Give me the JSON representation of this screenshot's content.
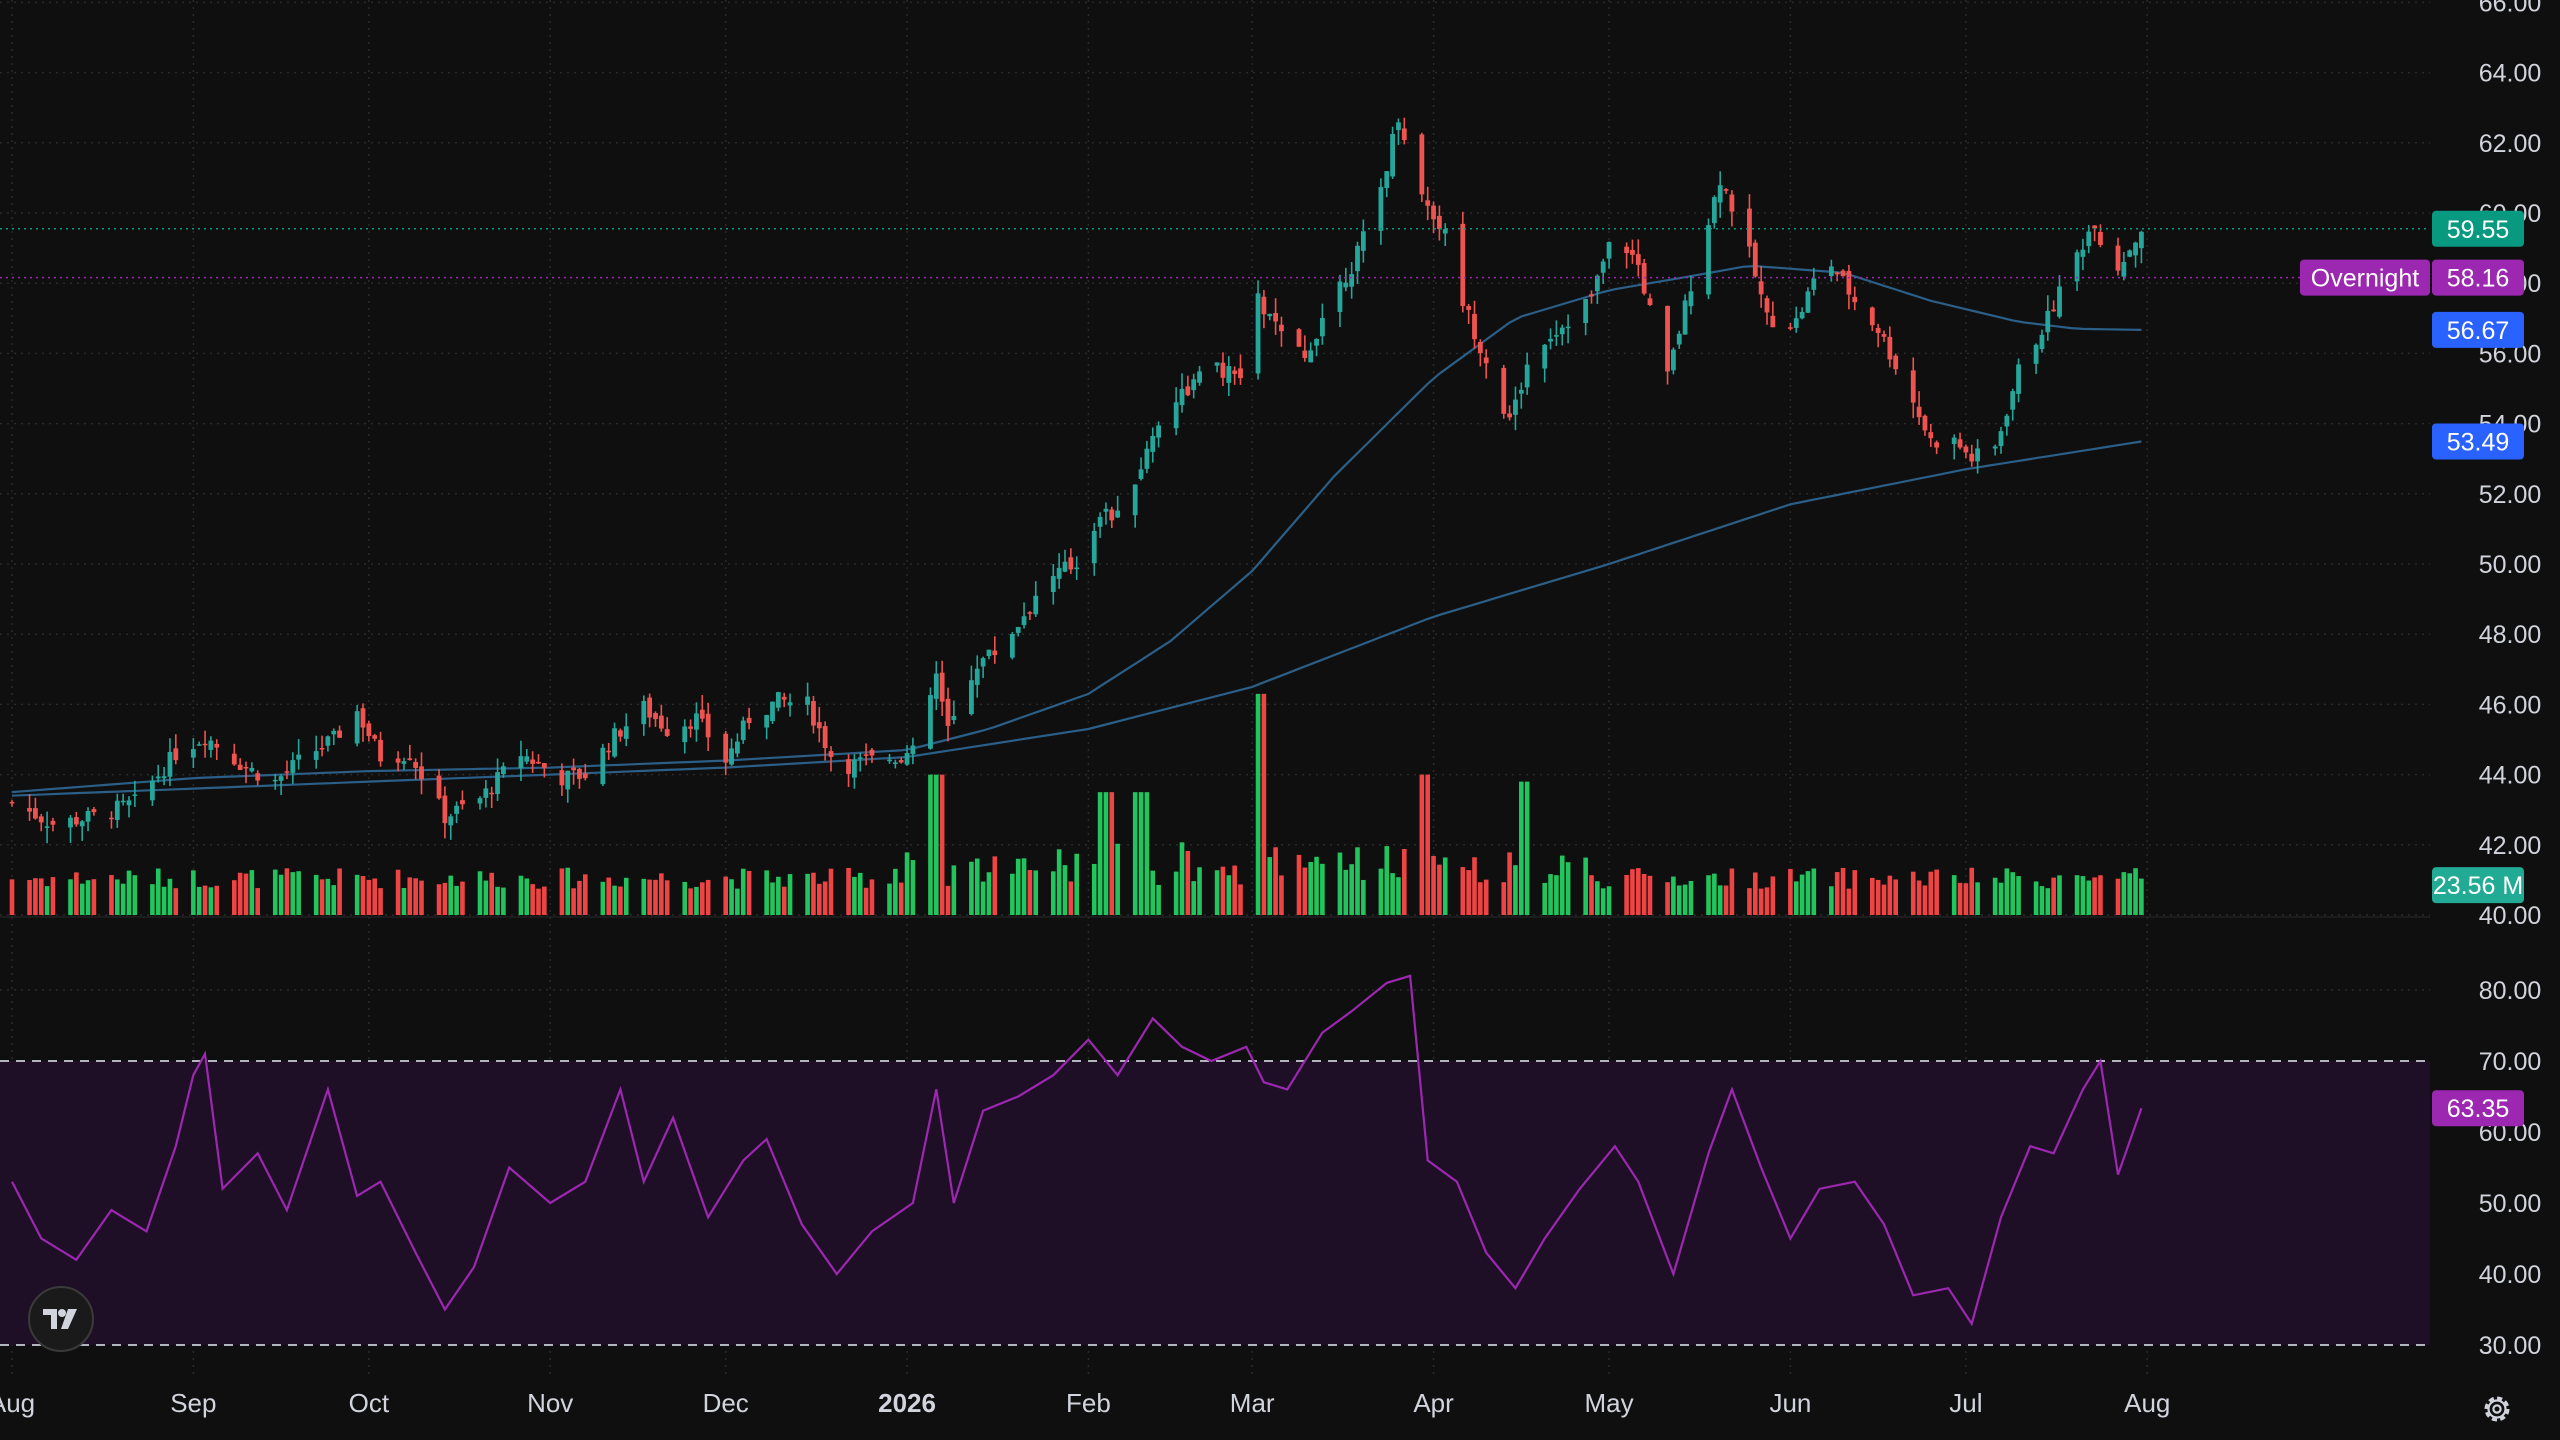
{
  "chart_data": [
    {
      "type": "candlestick",
      "panel": "price",
      "scale_position": "right",
      "yticks": [
        "40.00",
        "42.00",
        "44.00",
        "46.00",
        "48.00",
        "50.00",
        "52.00",
        "54.00",
        "56.00",
        "58.00",
        "60.00",
        "62.00",
        "64.00",
        "66.00"
      ],
      "ylim": [
        40,
        66
      ],
      "xticks": [
        {
          "label": "Aug",
          "date": "2025-08-01",
          "bold": false
        },
        {
          "label": "Sep",
          "date": "2025-09-01",
          "bold": false
        },
        {
          "label": "Oct",
          "date": "2025-10-01",
          "bold": false
        },
        {
          "label": "Nov",
          "date": "2025-11-01",
          "bold": false
        },
        {
          "label": "Dec",
          "date": "2025-12-01",
          "bold": false
        },
        {
          "label": "2026",
          "date": "2026-01-01",
          "bold": true
        },
        {
          "label": "Feb",
          "date": "2026-02-01",
          "bold": false
        },
        {
          "label": "Mar",
          "date": "2026-03-01",
          "bold": false
        },
        {
          "label": "Apr",
          "date": "2026-04-01",
          "bold": false
        },
        {
          "label": "May",
          "date": "2026-05-01",
          "bold": false
        },
        {
          "label": "Jun",
          "date": "2026-06-01",
          "bold": false
        },
        {
          "label": "Jul",
          "date": "2026-07-01",
          "bold": false
        },
        {
          "label": "Aug",
          "date": "2026-08-01",
          "bold": false
        }
      ],
      "first_date": "2025-08-01",
      "last_date": "2026-07-31",
      "close_path": [
        [
          "2025-08-01",
          43.2
        ],
        [
          "2025-08-08",
          42.6
        ],
        [
          "2025-08-15",
          42.8
        ],
        [
          "2025-08-22",
          43.2
        ],
        [
          "2025-08-29",
          44.6
        ],
        [
          "2025-09-03",
          45.1
        ],
        [
          "2025-09-10",
          44.2
        ],
        [
          "2025-09-15",
          43.8
        ],
        [
          "2025-09-20",
          44.5
        ],
        [
          "2025-09-25",
          45.0
        ],
        [
          "2025-09-29",
          45.8
        ],
        [
          "2025-10-03",
          44.5
        ],
        [
          "2025-10-08",
          44.6
        ],
        [
          "2025-10-14",
          42.8
        ],
        [
          "2025-10-20",
          43.3
        ],
        [
          "2025-10-27",
          44.6
        ],
        [
          "2025-11-03",
          43.9
        ],
        [
          "2025-11-07",
          44.0
        ],
        [
          "2025-11-12",
          45.1
        ],
        [
          "2025-11-17",
          45.9
        ],
        [
          "2025-11-21",
          45.3
        ],
        [
          "2025-11-26",
          45.6
        ],
        [
          "2025-12-01",
          44.4
        ],
        [
          "2025-12-05",
          45.6
        ],
        [
          "2025-12-10",
          46.1
        ],
        [
          "2025-12-15",
          46.0
        ],
        [
          "2025-12-20",
          44.2
        ],
        [
          "2025-12-26",
          44.4
        ],
        [
          "2026-01-02",
          44.6
        ],
        [
          "2026-01-06",
          46.8
        ],
        [
          "2026-01-08",
          45.2
        ],
        [
          "2026-01-13",
          47.2
        ],
        [
          "2026-01-17",
          47.6
        ],
        [
          "2026-01-22",
          48.8
        ],
        [
          "2026-01-26",
          49.7
        ],
        [
          "2026-01-30",
          50.0
        ],
        [
          "2026-02-03",
          51.5
        ],
        [
          "2026-02-06",
          51.3
        ],
        [
          "2026-02-10",
          52.8
        ],
        [
          "2026-02-14",
          54.5
        ],
        [
          "2026-02-18",
          55.0
        ],
        [
          "2026-02-22",
          55.6
        ],
        [
          "2026-02-27",
          55.3
        ],
        [
          "2026-03-02",
          57.5
        ],
        [
          "2026-03-06",
          56.5
        ],
        [
          "2026-03-10",
          55.8
        ],
        [
          "2026-03-14",
          57.5
        ],
        [
          "2026-03-18",
          58.5
        ],
        [
          "2026-03-22",
          60.0
        ],
        [
          "2026-03-26",
          62.8
        ],
        [
          "2026-03-30",
          60.5
        ],
        [
          "2026-04-03",
          59.4
        ],
        [
          "2026-04-06",
          57.5
        ],
        [
          "2026-04-10",
          55.8
        ],
        [
          "2026-04-14",
          54.0
        ],
        [
          "2026-04-18",
          56.2
        ],
        [
          "2026-04-23",
          56.8
        ],
        [
          "2026-04-28",
          57.6
        ],
        [
          "2026-05-02",
          59.5
        ],
        [
          "2026-05-06",
          58.5
        ],
        [
          "2026-05-11",
          55.3
        ],
        [
          "2026-05-15",
          58.0
        ],
        [
          "2026-05-20",
          61.0
        ],
        [
          "2026-05-24",
          59.4
        ],
        [
          "2026-05-28",
          57.0
        ],
        [
          "2026-06-02",
          56.9
        ],
        [
          "2026-06-07",
          58.8
        ],
        [
          "2026-06-12",
          57.5
        ],
        [
          "2026-06-16",
          56.7
        ],
        [
          "2026-06-21",
          55.0
        ],
        [
          "2026-06-25",
          53.5
        ],
        [
          "2026-06-29",
          53.5
        ],
        [
          "2026-07-02",
          53.0
        ],
        [
          "2026-07-06",
          53.3
        ],
        [
          "2026-07-10",
          55.5
        ],
        [
          "2026-07-15",
          57.0
        ],
        [
          "2026-07-19",
          58.5
        ],
        [
          "2026-07-23",
          59.8
        ],
        [
          "2026-07-26",
          58.2
        ],
        [
          "2026-07-31",
          59.55
        ]
      ],
      "ma_fast": [
        [
          "2025-08-01",
          43.5
        ],
        [
          "2025-09-01",
          43.9
        ],
        [
          "2025-10-01",
          44.1
        ],
        [
          "2025-11-01",
          44.2
        ],
        [
          "2025-12-01",
          44.4
        ],
        [
          "2026-01-01",
          44.7
        ],
        [
          "2026-01-15",
          45.3
        ],
        [
          "2026-02-01",
          46.3
        ],
        [
          "2026-02-15",
          47.8
        ],
        [
          "2026-03-01",
          49.8
        ],
        [
          "2026-03-15",
          52.5
        ],
        [
          "2026-04-01",
          55.3
        ],
        [
          "2026-04-15",
          57.0
        ],
        [
          "2026-05-01",
          57.8
        ],
        [
          "2026-05-15",
          58.2
        ],
        [
          "2026-05-25",
          58.5
        ],
        [
          "2026-06-10",
          58.3
        ],
        [
          "2026-06-25",
          57.5
        ],
        [
          "2026-07-10",
          56.9
        ],
        [
          "2026-07-20",
          56.7
        ],
        [
          "2026-07-31",
          56.67
        ]
      ],
      "ma_slow": [
        [
          "2025-08-01",
          43.4
        ],
        [
          "2025-09-01",
          43.6
        ],
        [
          "2025-10-01",
          43.8
        ],
        [
          "2025-11-01",
          44.0
        ],
        [
          "2025-12-01",
          44.2
        ],
        [
          "2026-01-01",
          44.5
        ],
        [
          "2026-02-01",
          45.3
        ],
        [
          "2026-03-01",
          46.5
        ],
        [
          "2026-04-01",
          48.5
        ],
        [
          "2026-05-01",
          50.0
        ],
        [
          "2026-06-01",
          51.7
        ],
        [
          "2026-07-01",
          52.7
        ],
        [
          "2026-07-31",
          53.49
        ]
      ],
      "volume": {
        "baseline_price": 40.0,
        "axis_max_price": 46.7,
        "spikes": [
          [
            "2026-01-06",
            44.0
          ],
          [
            "2026-03-02",
            46.3
          ],
          [
            "2026-03-30",
            44.0
          ],
          [
            "2026-04-17",
            43.8
          ],
          [
            "2026-02-04",
            43.5
          ],
          [
            "2026-02-10",
            43.5
          ]
        ]
      }
    },
    {
      "type": "line",
      "panel": "rsi",
      "scale_position": "right",
      "yticks": [
        "30.00",
        "40.00",
        "50.00",
        "60.00",
        "70.00",
        "80.00"
      ],
      "ylim": [
        30,
        83
      ],
      "band": [
        30,
        70
      ],
      "rsi_path": [
        [
          "2025-08-01",
          53
        ],
        [
          "2025-08-06",
          45
        ],
        [
          "2025-08-12",
          42
        ],
        [
          "2025-08-18",
          49
        ],
        [
          "2025-08-24",
          46
        ],
        [
          "2025-08-29",
          58
        ],
        [
          "2025-09-01",
          68
        ],
        [
          "2025-09-03",
          71
        ],
        [
          "2025-09-06",
          52
        ],
        [
          "2025-09-12",
          57
        ],
        [
          "2025-09-17",
          49
        ],
        [
          "2025-09-24",
          66
        ],
        [
          "2025-09-29",
          51
        ],
        [
          "2025-10-03",
          53
        ],
        [
          "2025-10-09",
          43
        ],
        [
          "2025-10-14",
          35
        ],
        [
          "2025-10-19",
          41
        ],
        [
          "2025-10-25",
          55
        ],
        [
          "2025-11-01",
          50
        ],
        [
          "2025-11-07",
          53
        ],
        [
          "2025-11-13",
          66
        ],
        [
          "2025-11-17",
          53
        ],
        [
          "2025-11-22",
          62
        ],
        [
          "2025-11-28",
          48
        ],
        [
          "2025-12-04",
          56
        ],
        [
          "2025-12-08",
          59
        ],
        [
          "2025-12-14",
          47
        ],
        [
          "2025-12-20",
          40
        ],
        [
          "2025-12-26",
          46
        ],
        [
          "2026-01-02",
          50
        ],
        [
          "2026-01-06",
          66
        ],
        [
          "2026-01-09",
          50
        ],
        [
          "2026-01-14",
          63
        ],
        [
          "2026-01-20",
          65
        ],
        [
          "2026-01-26",
          68
        ],
        [
          "2026-02-01",
          73
        ],
        [
          "2026-02-06",
          68
        ],
        [
          "2026-02-12",
          76
        ],
        [
          "2026-02-17",
          72
        ],
        [
          "2026-02-22",
          70
        ],
        [
          "2026-02-28",
          72
        ],
        [
          "2026-03-03",
          67
        ],
        [
          "2026-03-07",
          66
        ],
        [
          "2026-03-13",
          74
        ],
        [
          "2026-03-18",
          77
        ],
        [
          "2026-03-24",
          81
        ],
        [
          "2026-03-28",
          82
        ],
        [
          "2026-03-31",
          56
        ],
        [
          "2026-04-05",
          53
        ],
        [
          "2026-04-10",
          43
        ],
        [
          "2026-04-15",
          38
        ],
        [
          "2026-04-20",
          45
        ],
        [
          "2026-04-26",
          52
        ],
        [
          "2026-05-02",
          58
        ],
        [
          "2026-05-06",
          53
        ],
        [
          "2026-05-12",
          40
        ],
        [
          "2026-05-18",
          57
        ],
        [
          "2026-05-22",
          66
        ],
        [
          "2026-05-27",
          55
        ],
        [
          "2026-06-01",
          45
        ],
        [
          "2026-06-06",
          52
        ],
        [
          "2026-06-12",
          53
        ],
        [
          "2026-06-17",
          47
        ],
        [
          "2026-06-22",
          37
        ],
        [
          "2026-06-28",
          38
        ],
        [
          "2026-07-02",
          33
        ],
        [
          "2026-07-07",
          48
        ],
        [
          "2026-07-12",
          58
        ],
        [
          "2026-07-16",
          57
        ],
        [
          "2026-07-21",
          66
        ],
        [
          "2026-07-24",
          70
        ],
        [
          "2026-07-27",
          54
        ],
        [
          "2026-07-31",
          63.35
        ]
      ]
    }
  ],
  "price_tags": [
    {
      "value": "59.55",
      "price": 59.55,
      "color": "#089981",
      "type": "last"
    },
    {
      "value": "58.16",
      "price": 58.16,
      "color": "#9c27b0",
      "type": "overnight",
      "label": "Overnight"
    },
    {
      "value": "56.67",
      "price": 56.67,
      "color": "#2962ff",
      "type": "ma"
    },
    {
      "value": "53.49",
      "price": 53.49,
      "color": "#2962ff",
      "type": "ma"
    },
    {
      "value": "23.56 M",
      "price": 40.85,
      "color": "#22ab94",
      "type": "volume"
    }
  ],
  "rsi_tag": {
    "value": "63.35",
    "rsi": 63.35,
    "color": "#9c27b0"
  },
  "colors": {
    "background": "#0f0f0f",
    "up": "#26a69a",
    "down": "#ef5350",
    "vol_up": "#22c45e",
    "vol_down": "#ef4444",
    "ma": "#2b5f87",
    "rsi_line": "#9c27b0",
    "rsi_band": "#1e0f26"
  },
  "icons": {
    "logo": "tradingview-logo-icon",
    "settings": "gear-icon"
  }
}
